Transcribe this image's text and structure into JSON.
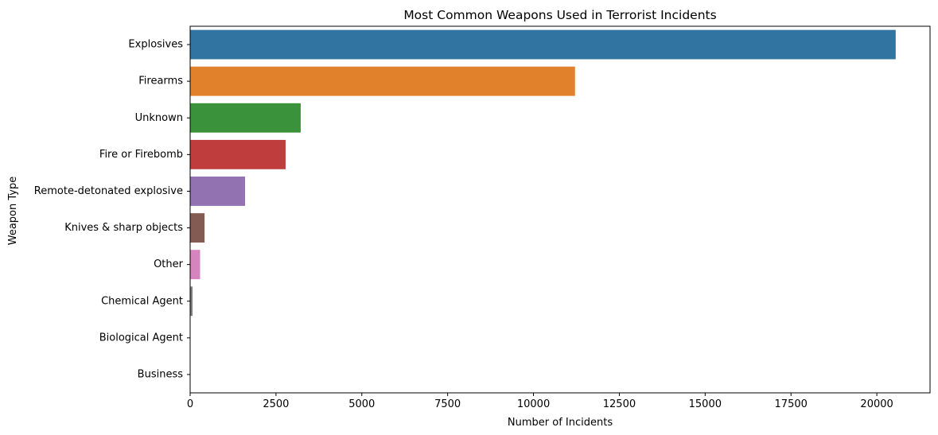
{
  "chart_data": {
    "type": "bar",
    "orientation": "horizontal",
    "title": "Most Common Weapons Used in Terrorist Incidents",
    "xlabel": "Number of Incidents",
    "ylabel": "Weapon Type",
    "xlim": [
      0,
      21550
    ],
    "xticks": [
      0,
      2500,
      5000,
      7500,
      10000,
      12500,
      15000,
      17500,
      20000
    ],
    "xtick_labels": [
      "0",
      "2500",
      "5000",
      "7500",
      "10000",
      "12500",
      "15000",
      "17500",
      "20000"
    ],
    "categories": [
      "Explosives",
      "Firearms",
      "Unknown",
      "Fire or Firebomb",
      "Remote-detonated explosive",
      "Knives & sharp objects",
      "Other",
      "Chemical Agent",
      "Biological Agent",
      "Business"
    ],
    "values": [
      20550,
      11210,
      3220,
      2780,
      1600,
      420,
      290,
      70,
      5,
      1
    ],
    "colors": [
      "#3274a1",
      "#e1812c",
      "#3a923a",
      "#c03d3e",
      "#9372b2",
      "#845b53",
      "#d684bd",
      "#7f7f7f",
      "#a9aa35",
      "#2eb0c1"
    ],
    "grid": false,
    "legend": "none"
  }
}
